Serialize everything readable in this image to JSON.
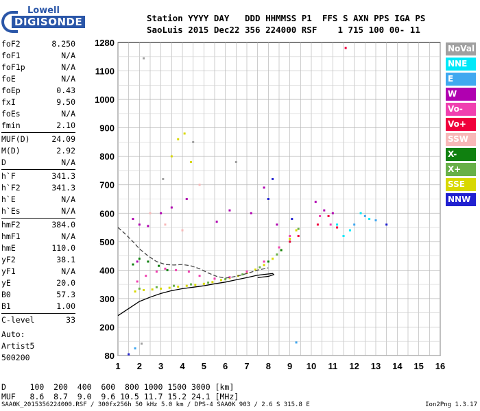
{
  "logo": {
    "top": "Lowell",
    "bottom": "DIGISONDE"
  },
  "header": {
    "line1": "Station YYYY DAY   DDD HHMMSS P1  FFS S AXN PPS IGA PS",
    "line2": "SaoLuis 2015 Dec22 356 224000 RSF    1 715 100 00- 11"
  },
  "params_group1": [
    {
      "name": "foF2",
      "value": "8.250"
    },
    {
      "name": "foF1",
      "value": "N/A"
    },
    {
      "name": "foF1p",
      "value": "N/A"
    },
    {
      "name": "foE",
      "value": "N/A"
    },
    {
      "name": "foEp",
      "value": "0.43"
    },
    {
      "name": "fxI",
      "value": "9.50"
    },
    {
      "name": "foEs",
      "value": "N/A"
    },
    {
      "name": "fmin",
      "value": "2.10"
    }
  ],
  "params_group2": [
    {
      "name": "MUF(D)",
      "value": "24.09"
    },
    {
      "name": "M(D)",
      "value": "2.92"
    },
    {
      "name": "D",
      "value": "N/A"
    }
  ],
  "params_group3": [
    {
      "name": "h`F",
      "value": "341.3"
    },
    {
      "name": "h`F2",
      "value": "341.3"
    },
    {
      "name": "h`E",
      "value": "N/A"
    },
    {
      "name": "h`Es",
      "value": "N/A"
    }
  ],
  "params_group4": [
    {
      "name": "hmF2",
      "value": "384.0"
    },
    {
      "name": "hmF1",
      "value": "N/A"
    },
    {
      "name": "hmE",
      "value": "110.0"
    },
    {
      "name": "yF2",
      "value": "38.1"
    },
    {
      "name": "yF1",
      "value": "N/A"
    },
    {
      "name": "yE",
      "value": "20.0"
    },
    {
      "name": "B0",
      "value": "57.3"
    },
    {
      "name": "B1",
      "value": "1.00"
    }
  ],
  "params_group5": [
    {
      "name": "C-level",
      "value": "33"
    }
  ],
  "auto": {
    "line1": "Auto:",
    "line2": "Artist5",
    "line3": "500200"
  },
  "dmuf": {
    "d_line": "D     100  200  400  600  800 1000 1500 3000 [km]",
    "muf_line": "MUF   8.6  8.7  9.0  9.6 10.5 11.7 15.2 24.1 [MHz]"
  },
  "footer": {
    "text": "SAA0K_2015356224000.RSF / 300fx256h 50 kHz 5.0 km / DPS-4 SAA0K 903 / 2.6 S 315.8 E",
    "version": "Ion2Png 1.3.17"
  },
  "legend": [
    {
      "label": "NoVal",
      "color": "#a0a0a0"
    },
    {
      "label": "NNE",
      "color": "#00e8f8"
    },
    {
      "label": "E",
      "color": "#40a8f0"
    },
    {
      "label": "W",
      "color": "#b000b0"
    },
    {
      "label": "Vo-",
      "color": "#f040b0"
    },
    {
      "label": "Vo+",
      "color": "#f0003c"
    },
    {
      "label": "SSW",
      "color": "#f8b8b8"
    },
    {
      "label": "X-",
      "color": "#108010"
    },
    {
      "label": "X+",
      "color": "#68b048"
    },
    {
      "label": "SSE",
      "color": "#d8d800"
    },
    {
      "label": "NNW",
      "color": "#2020d0"
    }
  ],
  "chart_data": {
    "type": "scatter",
    "title": "",
    "xlabel": "",
    "ylabel": "",
    "xlim": [
      1,
      16
    ],
    "ylim": [
      80,
      1280
    ],
    "x_ticks": [
      1,
      2,
      3,
      4,
      5,
      6,
      7,
      8,
      9,
      10,
      11,
      12,
      13,
      14,
      15,
      16
    ],
    "y_ticks": [
      80,
      200,
      300,
      400,
      500,
      600,
      700,
      800,
      900,
      1000,
      1100,
      1280
    ],
    "grid": true,
    "legend_position": "right",
    "series": [
      {
        "name": "SSE",
        "color": "#d8d800",
        "points": [
          [
            1.8,
            325
          ],
          [
            2.2,
            330
          ],
          [
            2.6,
            332
          ],
          [
            3.0,
            335
          ],
          [
            3.4,
            338
          ],
          [
            3.8,
            342
          ],
          [
            4.2,
            345
          ],
          [
            4.6,
            348
          ],
          [
            5.0,
            352
          ],
          [
            5.4,
            358
          ],
          [
            5.8,
            365
          ],
          [
            6.2,
            372
          ],
          [
            6.6,
            380
          ],
          [
            7.0,
            390
          ],
          [
            7.4,
            402
          ],
          [
            7.8,
            418
          ],
          [
            8.2,
            440
          ],
          [
            8.6,
            470
          ],
          [
            9.0,
            510
          ],
          [
            9.3,
            540
          ],
          [
            3.5,
            800
          ],
          [
            3.8,
            860
          ],
          [
            4.1,
            880
          ],
          [
            4.4,
            780
          ]
        ]
      },
      {
        "name": "X+",
        "color": "#68b048",
        "points": [
          [
            2.0,
            335
          ],
          [
            2.8,
            340
          ],
          [
            3.6,
            345
          ],
          [
            4.4,
            350
          ],
          [
            5.2,
            356
          ],
          [
            6.0,
            368
          ],
          [
            6.8,
            385
          ],
          [
            7.6,
            410
          ],
          [
            8.4,
            455
          ],
          [
            9.0,
            500
          ],
          [
            9.4,
            545
          ]
        ]
      },
      {
        "name": "X-",
        "color": "#108010",
        "points": [
          [
            1.7,
            420
          ],
          [
            2.0,
            440
          ],
          [
            2.4,
            430
          ],
          [
            2.9,
            415
          ],
          [
            3.3,
            400
          ],
          [
            8.0,
            430
          ],
          [
            8.6,
            470
          ]
        ]
      },
      {
        "name": "Vo-",
        "color": "#f040b0",
        "points": [
          [
            1.9,
            360
          ],
          [
            2.3,
            380
          ],
          [
            2.8,
            395
          ],
          [
            3.2,
            405
          ],
          [
            3.7,
            400
          ],
          [
            4.3,
            395
          ],
          [
            4.8,
            380
          ],
          [
            5.5,
            370
          ],
          [
            6.2,
            375
          ],
          [
            7.0,
            395
          ],
          [
            7.8,
            430
          ],
          [
            8.5,
            480
          ],
          [
            9.0,
            520
          ],
          [
            10.4,
            590
          ],
          [
            10.9,
            560
          ]
        ]
      },
      {
        "name": "W",
        "color": "#b000b0",
        "points": [
          [
            1.7,
            580
          ],
          [
            2.0,
            560
          ],
          [
            2.4,
            555
          ],
          [
            1.9,
            430
          ],
          [
            3.0,
            600
          ],
          [
            3.5,
            620
          ],
          [
            4.2,
            650
          ],
          [
            5.6,
            570
          ],
          [
            6.2,
            610
          ],
          [
            7.2,
            600
          ],
          [
            7.8,
            690
          ],
          [
            8.4,
            560
          ],
          [
            10.2,
            640
          ],
          [
            10.6,
            610
          ],
          [
            11.0,
            600
          ]
        ]
      },
      {
        "name": "Vo+",
        "color": "#f0003c",
        "points": [
          [
            9.0,
            500
          ],
          [
            9.4,
            520
          ],
          [
            10.3,
            560
          ],
          [
            10.8,
            590
          ],
          [
            11.2,
            550
          ],
          [
            11.6,
            1245
          ]
        ]
      },
      {
        "name": "NNE",
        "color": "#00e8f8",
        "points": [
          [
            11.5,
            520
          ],
          [
            11.8,
            540
          ],
          [
            12.3,
            600
          ],
          [
            12.7,
            580
          ],
          [
            11.2,
            560
          ]
        ]
      },
      {
        "name": "E",
        "color": "#40a8f0",
        "points": [
          [
            12.0,
            560
          ],
          [
            12.5,
            590
          ],
          [
            13.0,
            575
          ],
          [
            1.8,
            110
          ],
          [
            9.3,
            135
          ]
        ]
      },
      {
        "name": "NNW",
        "color": "#2020d0",
        "points": [
          [
            8.2,
            720
          ],
          [
            8.0,
            650
          ],
          [
            9.1,
            580
          ],
          [
            13.5,
            560
          ],
          [
            1.5,
            85
          ]
        ]
      },
      {
        "name": "SSW",
        "color": "#f8b8b8",
        "points": [
          [
            2.5,
            600
          ],
          [
            3.2,
            560
          ],
          [
            4.0,
            540
          ],
          [
            4.8,
            700
          ]
        ]
      },
      {
        "name": "NoVal",
        "color": "#a0a0a0",
        "points": [
          [
            2.1,
            130
          ],
          [
            2.2,
            1180
          ],
          [
            3.1,
            720
          ],
          [
            4.5,
            850
          ],
          [
            6.5,
            780
          ]
        ]
      }
    ],
    "curves": [
      {
        "points": [
          [
            1.0,
            240
          ],
          [
            1.5,
            265
          ],
          [
            2.0,
            290
          ],
          [
            2.5,
            305
          ],
          [
            3.0,
            318
          ],
          [
            3.5,
            328
          ],
          [
            4.0,
            335
          ],
          [
            4.5,
            340
          ],
          [
            5.0,
            345
          ],
          [
            5.5,
            352
          ],
          [
            6.0,
            358
          ],
          [
            6.5,
            366
          ],
          [
            7.0,
            374
          ],
          [
            7.5,
            382
          ],
          [
            7.8,
            385
          ],
          [
            8.2,
            388
          ],
          [
            8.25,
            384
          ],
          [
            8.0,
            378
          ],
          [
            7.5,
            374
          ]
        ]
      },
      {
        "points": [
          [
            1.0,
            550
          ],
          [
            1.3,
            530
          ],
          [
            1.7,
            500
          ],
          [
            2.0,
            475
          ],
          [
            2.4,
            450
          ],
          [
            2.8,
            430
          ],
          [
            3.2,
            420
          ],
          [
            3.6,
            418
          ],
          [
            4.0,
            420
          ],
          [
            4.4,
            415
          ],
          [
            4.8,
            405
          ],
          [
            5.2,
            390
          ],
          [
            5.6,
            378
          ],
          [
            6.0,
            372
          ],
          [
            6.5,
            378
          ],
          [
            7.0,
            388
          ],
          [
            7.5,
            400
          ],
          [
            8.0,
            408
          ]
        ]
      }
    ]
  }
}
